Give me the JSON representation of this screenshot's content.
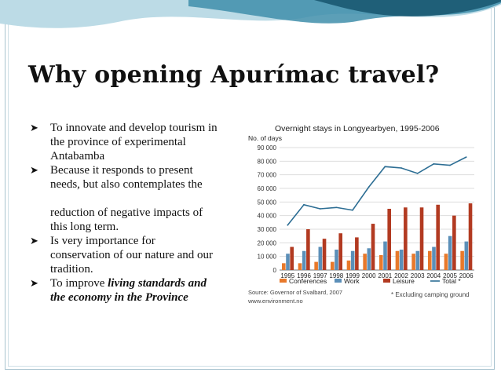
{
  "title": "Why opening Apurímac travel?",
  "bullets": {
    "b1_line1": "To innovate and develop tourism in",
    "b1_line2": "the province of experimental",
    "b1_line3": "Antabamba",
    "b2_line1": "Because it responds to present",
    "b2_line2": "needs, but also contemplates the",
    "b2_line3": "reduction of negative impacts of",
    "b2_line4": "this long term.",
    "b3_line1": "Is very importance for",
    "b3_line2": "conservation of our nature and our",
    "b3_line3": "tradition.",
    "b4_plain": "To improve ",
    "b4_bold_line1": "living standards and",
    "b4_bold_line2": "the economy in the Province"
  },
  "colors": {
    "conferences": "#e8792b",
    "work": "#5b8fb8",
    "leisure": "#b23a21",
    "total": "#2d6e94",
    "banner_teal": "#3f8eaa",
    "banner_light": "#bcdbe6"
  },
  "chart_data": {
    "type": "bar",
    "title": "Overnight stays in Longyearbyen, 1995-2006",
    "ylabel": "No. of days",
    "ylim": [
      0,
      90000
    ],
    "yticks": [
      0,
      10000,
      20000,
      30000,
      40000,
      50000,
      60000,
      70000,
      80000,
      90000
    ],
    "ytick_labels": [
      "0",
      "10 000",
      "20 000",
      "30 000",
      "40 000",
      "50 000",
      "60 000",
      "70 000",
      "80 000",
      "90 000"
    ],
    "categories": [
      "1995",
      "1996",
      "1997",
      "1998",
      "1999",
      "2000",
      "2001",
      "2002",
      "2003",
      "2004",
      "2005",
      "2006"
    ],
    "series": [
      {
        "name": "Conferences",
        "kind": "bar",
        "values": [
          5000,
          5000,
          6000,
          6000,
          7000,
          12000,
          11000,
          14000,
          12000,
          14000,
          12000,
          14000
        ]
      },
      {
        "name": "Work",
        "kind": "bar",
        "values": [
          12000,
          14000,
          17000,
          15000,
          14000,
          16000,
          21000,
          15000,
          14000,
          17000,
          25000,
          21000
        ]
      },
      {
        "name": "Leisure",
        "kind": "bar",
        "values": [
          17000,
          30000,
          23000,
          27000,
          24000,
          34000,
          45000,
          46000,
          46000,
          48000,
          40000,
          49000
        ]
      },
      {
        "name": "Total *",
        "kind": "line",
        "values": [
          33000,
          48000,
          45000,
          46000,
          44000,
          61000,
          76000,
          75000,
          71000,
          78000,
          77000,
          83000
        ]
      }
    ],
    "source": "Source: Governor of Svalbard, 2007",
    "url": "www.environment.no",
    "footnote": "* Excluding camping ground"
  }
}
